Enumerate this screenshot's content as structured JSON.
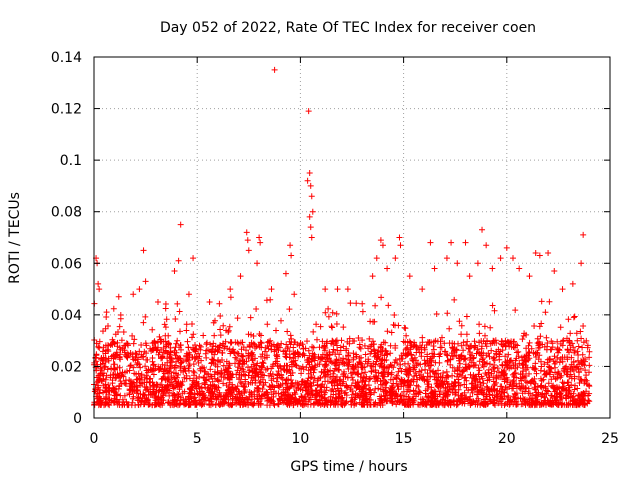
{
  "chart_data": {
    "type": "scatter",
    "title": "Day 052 of 2022, Rate Of TEC Index for receiver coen",
    "xlabel": "GPS time / hours",
    "ylabel": "ROTI / TECUs",
    "xlim": [
      0,
      25
    ],
    "ylim": [
      0,
      0.14
    ],
    "x_ticks": [
      0,
      5,
      10,
      15,
      20,
      25
    ],
    "y_ticks": [
      0,
      0.02,
      0.04,
      0.06,
      0.08,
      0.1,
      0.12,
      0.14
    ],
    "x_tick_labels": [
      "0",
      "5",
      "10",
      "15",
      "20",
      "25"
    ],
    "y_tick_labels": [
      "0",
      "0.02",
      "0.04",
      "0.06",
      "0.08",
      "0.1",
      "0.12",
      "0.14"
    ],
    "grid": true,
    "marker": "+",
    "color": "#ff0000",
    "x_data_range": [
      0,
      24
    ],
    "bulk_range": [
      0.005,
      0.03
    ],
    "series": [
      {
        "name": "ROTI",
        "points": [
          [
            8.75,
            0.135
          ],
          [
            10.4,
            0.119
          ],
          [
            10.45,
            0.095
          ],
          [
            10.35,
            0.092
          ],
          [
            10.5,
            0.09
          ],
          [
            10.55,
            0.086
          ],
          [
            10.6,
            0.08
          ],
          [
            10.45,
            0.078
          ],
          [
            10.5,
            0.074
          ],
          [
            10.55,
            0.07
          ],
          [
            4.2,
            0.075
          ],
          [
            18.8,
            0.073
          ],
          [
            23.7,
            0.071
          ],
          [
            2.4,
            0.065
          ],
          [
            4.8,
            0.062
          ],
          [
            7.4,
            0.072
          ],
          [
            7.45,
            0.069
          ],
          [
            7.5,
            0.065
          ],
          [
            8.0,
            0.07
          ],
          [
            8.05,
            0.068
          ],
          [
            9.5,
            0.067
          ],
          [
            9.55,
            0.063
          ],
          [
            13.9,
            0.069
          ],
          [
            14.0,
            0.067
          ],
          [
            14.8,
            0.07
          ],
          [
            14.85,
            0.067
          ],
          [
            16.3,
            0.068
          ],
          [
            17.3,
            0.068
          ],
          [
            18.0,
            0.068
          ],
          [
            19.0,
            0.067
          ],
          [
            19.7,
            0.062
          ],
          [
            20.0,
            0.066
          ],
          [
            20.3,
            0.062
          ],
          [
            21.4,
            0.064
          ],
          [
            21.6,
            0.063
          ],
          [
            22.0,
            0.064
          ],
          [
            23.6,
            0.06
          ],
          [
            0.1,
            0.062
          ],
          [
            0.15,
            0.06
          ],
          [
            0.2,
            0.052
          ],
          [
            0.25,
            0.05
          ],
          [
            1.2,
            0.047
          ],
          [
            1.9,
            0.048
          ],
          [
            2.2,
            0.05
          ],
          [
            2.5,
            0.053
          ],
          [
            3.1,
            0.045
          ],
          [
            3.9,
            0.057
          ],
          [
            4.1,
            0.061
          ],
          [
            4.6,
            0.048
          ],
          [
            5.6,
            0.045
          ],
          [
            6.6,
            0.05
          ],
          [
            7.1,
            0.055
          ],
          [
            7.9,
            0.06
          ],
          [
            8.6,
            0.05
          ],
          [
            9.3,
            0.056
          ],
          [
            9.7,
            0.048
          ],
          [
            11.2,
            0.05
          ],
          [
            11.8,
            0.05
          ],
          [
            12.3,
            0.05
          ],
          [
            13.5,
            0.055
          ],
          [
            13.7,
            0.062
          ],
          [
            14.2,
            0.058
          ],
          [
            14.6,
            0.062
          ],
          [
            15.3,
            0.055
          ],
          [
            15.9,
            0.05
          ],
          [
            16.5,
            0.058
          ],
          [
            17.1,
            0.062
          ],
          [
            17.6,
            0.06
          ],
          [
            18.2,
            0.055
          ],
          [
            18.6,
            0.06
          ],
          [
            19.3,
            0.058
          ],
          [
            20.6,
            0.058
          ],
          [
            21.1,
            0.055
          ],
          [
            22.3,
            0.057
          ],
          [
            22.7,
            0.05
          ],
          [
            23.2,
            0.052
          ]
        ]
      }
    ]
  }
}
